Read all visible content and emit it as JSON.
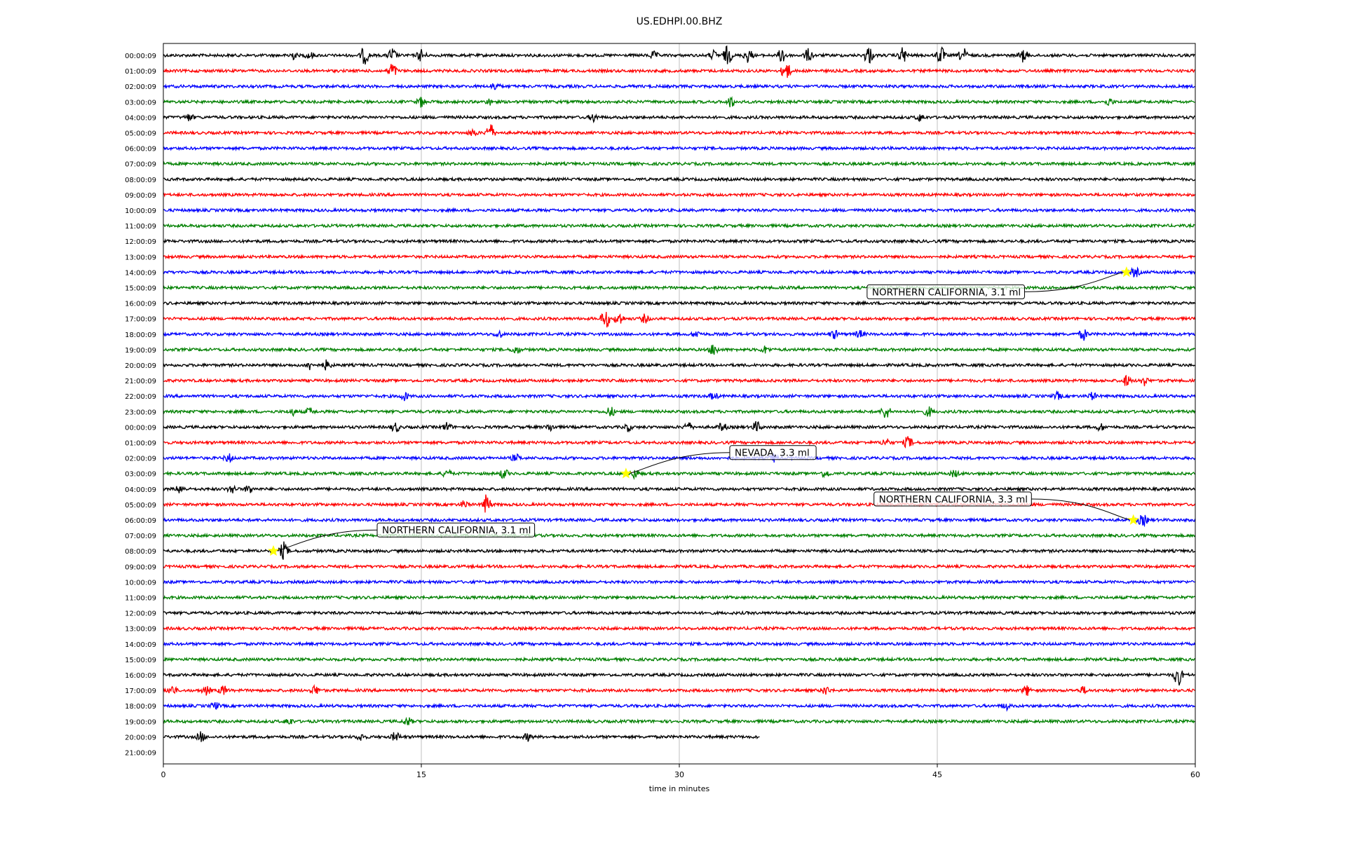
{
  "chart_data": {
    "type": "line",
    "title": "US.EDHPI.00.BHZ",
    "xlabel": "time in minutes",
    "ylabel": "",
    "xlim": [
      0,
      60
    ],
    "xticks": [
      "0",
      "15",
      "30",
      "45",
      "60"
    ],
    "x_tick_values": [
      0,
      15,
      30,
      45,
      60
    ],
    "grid_x": true,
    "trace_colors": [
      "#000000",
      "#ff0000",
      "#0000ff",
      "#008000"
    ],
    "row_labels": [
      "00:00:09",
      "01:00:09",
      "02:00:09",
      "03:00:09",
      "04:00:09",
      "05:00:09",
      "06:00:09",
      "07:00:09",
      "08:00:09",
      "09:00:09",
      "10:00:09",
      "11:00:09",
      "12:00:09",
      "13:00:09",
      "14:00:09",
      "15:00:09",
      "16:00:09",
      "17:00:09",
      "18:00:09",
      "19:00:09",
      "20:00:09",
      "21:00:09",
      "22:00:09",
      "23:00:09",
      "00:00:09",
      "01:00:09",
      "02:00:09",
      "03:00:09",
      "04:00:09",
      "05:00:09",
      "06:00:09",
      "07:00:09",
      "08:00:09",
      "09:00:09",
      "10:00:09",
      "11:00:09",
      "12:00:09",
      "13:00:09",
      "14:00:09",
      "15:00:09",
      "16:00:09",
      "17:00:09",
      "18:00:09",
      "19:00:09",
      "20:00:09",
      "21:00:09"
    ],
    "last_trace_end_minute": 34.7,
    "events": [
      {
        "label": "NORTHERN CALIFORNIA, 3.1 ml",
        "row": 14,
        "minute": 56.0
      },
      {
        "label": "NEVADA, 3.3 ml",
        "row": 27,
        "minute": 26.9
      },
      {
        "label": "NORTHERN CALIFORNIA, 3.3 ml",
        "row": 30,
        "minute": 56.4
      },
      {
        "label": "NORTHERN CALIFORNIA, 3.1 ml",
        "row": 32,
        "minute": 6.4
      }
    ],
    "marker_color": "#ffff00",
    "bursts": [
      {
        "row": 0,
        "minute": 7.5,
        "amp": 6
      },
      {
        "row": 0,
        "minute": 8.5,
        "amp": 5
      },
      {
        "row": 0,
        "minute": 11.7,
        "amp": 13
      },
      {
        "row": 0,
        "minute": 13.3,
        "amp": 10
      },
      {
        "row": 0,
        "minute": 15,
        "amp": 9
      },
      {
        "row": 0,
        "minute": 28.5,
        "amp": 5
      },
      {
        "row": 0,
        "minute": 32,
        "amp": 6
      },
      {
        "row": 0,
        "minute": 32.8,
        "amp": 14
      },
      {
        "row": 0,
        "minute": 34,
        "amp": 10
      },
      {
        "row": 0,
        "minute": 36,
        "amp": 12
      },
      {
        "row": 0,
        "minute": 37.5,
        "amp": 9
      },
      {
        "row": 0,
        "minute": 41,
        "amp": 14
      },
      {
        "row": 0,
        "minute": 43,
        "amp": 12
      },
      {
        "row": 0,
        "minute": 45.2,
        "amp": 13
      },
      {
        "row": 0,
        "minute": 46.5,
        "amp": 11
      },
      {
        "row": 0,
        "minute": 50,
        "amp": 9
      },
      {
        "row": 1,
        "minute": 13.3,
        "amp": 12
      },
      {
        "row": 1,
        "minute": 36.2,
        "amp": 15
      },
      {
        "row": 2,
        "minute": 19.3,
        "amp": 6
      },
      {
        "row": 3,
        "minute": 15,
        "amp": 7
      },
      {
        "row": 3,
        "minute": 19,
        "amp": 4
      },
      {
        "row": 3,
        "minute": 33,
        "amp": 8
      },
      {
        "row": 3,
        "minute": 55,
        "amp": 5
      },
      {
        "row": 4,
        "minute": 1.5,
        "amp": 5
      },
      {
        "row": 4,
        "minute": 25,
        "amp": 6
      },
      {
        "row": 4,
        "minute": 44,
        "amp": 5
      },
      {
        "row": 5,
        "minute": 18,
        "amp": 5
      },
      {
        "row": 5,
        "minute": 19,
        "amp": 14
      },
      {
        "row": 17,
        "minute": 25.7,
        "amp": 15
      },
      {
        "row": 17,
        "minute": 26.5,
        "amp": 10
      },
      {
        "row": 17,
        "minute": 28,
        "amp": 6
      },
      {
        "row": 18,
        "minute": 19.5,
        "amp": 5
      },
      {
        "row": 18,
        "minute": 31,
        "amp": 5
      },
      {
        "row": 18,
        "minute": 39,
        "amp": 6
      },
      {
        "row": 18,
        "minute": 40.5,
        "amp": 5
      },
      {
        "row": 18,
        "minute": 53.5,
        "amp": 8
      },
      {
        "row": 19,
        "minute": 20.5,
        "amp": 6
      },
      {
        "row": 19,
        "minute": 32,
        "amp": 9
      },
      {
        "row": 19,
        "minute": 35,
        "amp": 5
      },
      {
        "row": 20,
        "minute": 8.5,
        "amp": 6
      },
      {
        "row": 20,
        "minute": 9.5,
        "amp": 7
      },
      {
        "row": 21,
        "minute": 56,
        "amp": 8
      },
      {
        "row": 21,
        "minute": 57,
        "amp": 7
      },
      {
        "row": 22,
        "minute": 14,
        "amp": 6
      },
      {
        "row": 22,
        "minute": 32,
        "amp": 5
      },
      {
        "row": 22,
        "minute": 52,
        "amp": 5
      },
      {
        "row": 22,
        "minute": 54,
        "amp": 5
      },
      {
        "row": 23,
        "minute": 7.5,
        "amp": 5
      },
      {
        "row": 23,
        "minute": 8.5,
        "amp": 5
      },
      {
        "row": 23,
        "minute": 26,
        "amp": 7
      },
      {
        "row": 23,
        "minute": 42,
        "amp": 11
      },
      {
        "row": 23,
        "minute": 44.5,
        "amp": 7
      },
      {
        "row": 24,
        "minute": 13.5,
        "amp": 7
      },
      {
        "row": 24,
        "minute": 16.5,
        "amp": 6
      },
      {
        "row": 24,
        "minute": 22.5,
        "amp": 5
      },
      {
        "row": 24,
        "minute": 27,
        "amp": 5
      },
      {
        "row": 24,
        "minute": 30.5,
        "amp": 7
      },
      {
        "row": 24,
        "minute": 32.5,
        "amp": 6
      },
      {
        "row": 24,
        "minute": 34.5,
        "amp": 8
      },
      {
        "row": 24,
        "minute": 54.5,
        "amp": 5
      },
      {
        "row": 25,
        "minute": 42,
        "amp": 6
      },
      {
        "row": 25,
        "minute": 43.3,
        "amp": 9
      },
      {
        "row": 26,
        "minute": 3.8,
        "amp": 6
      },
      {
        "row": 26,
        "minute": 20.5,
        "amp": 5
      },
      {
        "row": 26,
        "minute": 35.5,
        "amp": 6
      },
      {
        "row": 27,
        "minute": 16.5,
        "amp": 6
      },
      {
        "row": 27,
        "minute": 19.8,
        "amp": 7
      },
      {
        "row": 27,
        "minute": 38.5,
        "amp": 5
      },
      {
        "row": 27,
        "minute": 46,
        "amp": 5
      },
      {
        "row": 28,
        "minute": 1,
        "amp": 7
      },
      {
        "row": 28,
        "minute": 4,
        "amp": 6
      },
      {
        "row": 28,
        "minute": 5,
        "amp": 6
      },
      {
        "row": 29,
        "minute": 17.5,
        "amp": 5
      },
      {
        "row": 29,
        "minute": 18.8,
        "amp": 15
      },
      {
        "row": 30,
        "minute": 57,
        "amp": 7
      },
      {
        "row": 32,
        "minute": 7,
        "amp": 12
      },
      {
        "row": 40,
        "minute": 59,
        "amp": 16
      },
      {
        "row": 41,
        "minute": 0.5,
        "amp": 7
      },
      {
        "row": 41,
        "minute": 2.5,
        "amp": 6
      },
      {
        "row": 41,
        "minute": 3.5,
        "amp": 7
      },
      {
        "row": 41,
        "minute": 8.8,
        "amp": 7
      },
      {
        "row": 41,
        "minute": 38.5,
        "amp": 6
      },
      {
        "row": 41,
        "minute": 50.2,
        "amp": 7
      },
      {
        "row": 41,
        "minute": 53.5,
        "amp": 5
      },
      {
        "row": 42,
        "minute": 3,
        "amp": 5
      },
      {
        "row": 42,
        "minute": 49,
        "amp": 5
      },
      {
        "row": 43,
        "minute": 7.3,
        "amp": 5
      },
      {
        "row": 43,
        "minute": 14.2,
        "amp": 6
      },
      {
        "row": 44,
        "minute": 2.2,
        "amp": 7
      },
      {
        "row": 44,
        "minute": 11.5,
        "amp": 5
      },
      {
        "row": 44,
        "minute": 13.5,
        "amp": 7
      },
      {
        "row": 44,
        "minute": 21.2,
        "amp": 5
      }
    ]
  }
}
